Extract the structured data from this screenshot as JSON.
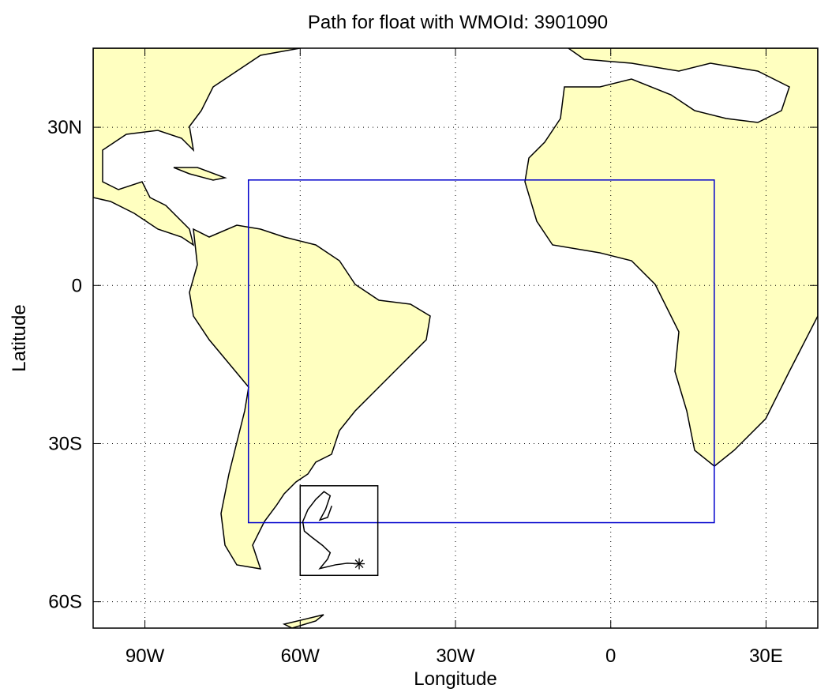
{
  "chart_data": {
    "type": "map",
    "title": "Path for float with WMOId: 3901090",
    "x_label": "Longitude",
    "y_label": "Latitude",
    "xlim": [
      -100,
      40
    ],
    "ylim": [
      -65,
      45
    ],
    "xticks": [
      {
        "value": -90,
        "label": "90W"
      },
      {
        "value": -60,
        "label": "60W"
      },
      {
        "value": -30,
        "label": "30W"
      },
      0,
      {
        "value": 30,
        "label": "30E"
      }
    ],
    "yticks": [
      {
        "value": 30,
        "label": "30N"
      },
      0,
      {
        "value": -30,
        "label": "30S"
      },
      {
        "value": -60,
        "label": "60S"
      }
    ],
    "grid": true,
    "land_color": "#ffffc0",
    "boxes": [
      {
        "color": "#0000cc",
        "xlim": [
          -70,
          20
        ],
        "ylim": [
          -45,
          20
        ]
      },
      {
        "color": "#000000",
        "xlim": [
          -60,
          -45
        ],
        "ylim": [
          -55,
          -38
        ]
      }
    ],
    "path": {
      "color": "#000000",
      "x": [
        -48.6,
        -50.9,
        -53.2,
        -56.2,
        -54.7,
        -54.2,
        -55.7,
        -57.7,
        -59.2,
        -59.5,
        -58.5,
        -57.0,
        -55.4,
        -54.2,
        -55.1,
        -56.2,
        -54.7,
        -53.9
      ],
      "values": [
        -52.8,
        -52.7,
        -53.0,
        -53.7,
        -51.9,
        -50.7,
        -49.3,
        -47.8,
        -46.6,
        -44.8,
        -42.5,
        -40.6,
        -39.1,
        -39.9,
        -42.5,
        -44.5,
        -44.0,
        -41.8
      ]
    }
  }
}
